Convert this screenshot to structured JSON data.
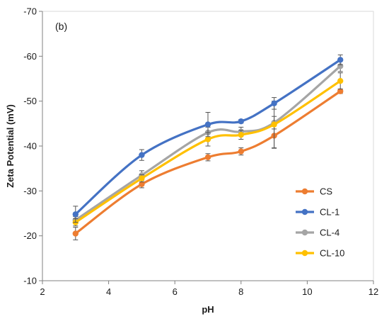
{
  "chart_data": {
    "type": "line",
    "panel_label": "(b)",
    "xlabel": "pH",
    "ylabel": "Zeta Potential (mV)",
    "xlim": [
      2,
      12
    ],
    "ylim": [
      -10,
      -70
    ],
    "x_ticks": [
      2,
      4,
      6,
      8,
      10,
      12
    ],
    "y_ticks": [
      -10,
      -20,
      -30,
      -40,
      -50,
      -60,
      -70
    ],
    "x_tick_labels": [
      "2",
      "4",
      "6",
      "8",
      "10",
      "12"
    ],
    "y_tick_labels": [
      "-10",
      "-20",
      "-30",
      "-40",
      "-50",
      "-60",
      "-70"
    ],
    "grid": false,
    "legend_position": "lower-right",
    "x": [
      3,
      5,
      7,
      8,
      9,
      11
    ],
    "series": [
      {
        "name": "CS",
        "color": "#ED7D31",
        "values": [
          -20.5,
          -31.5,
          -37.5,
          -38.8,
          -42.3,
          -52.2
        ],
        "errors": [
          1.4,
          0.8,
          0.8,
          0.8,
          2.8,
          0.5
        ]
      },
      {
        "name": "CL-1",
        "color": "#4472C4",
        "values": [
          -24.8,
          -38.0,
          -44.8,
          -45.5,
          -49.5,
          -59.2
        ],
        "errors": [
          1.8,
          1.2,
          2.7,
          0.4,
          1.3,
          1.1
        ]
      },
      {
        "name": "CL-4",
        "color": "#A5A5A5",
        "values": [
          -23.5,
          -33.5,
          -43.0,
          -43.2,
          -45.2,
          -57.8
        ],
        "errors": [
          0.8,
          1.0,
          1.2,
          1.0,
          1.4,
          1.2
        ]
      },
      {
        "name": "CL-10",
        "color": "#FFC000",
        "values": [
          -23.0,
          -32.8,
          -41.5,
          -42.5,
          -44.8,
          -54.5
        ],
        "errors": [
          0.8,
          0.8,
          1.5,
          1.0,
          5.2,
          1.8
        ]
      }
    ]
  }
}
